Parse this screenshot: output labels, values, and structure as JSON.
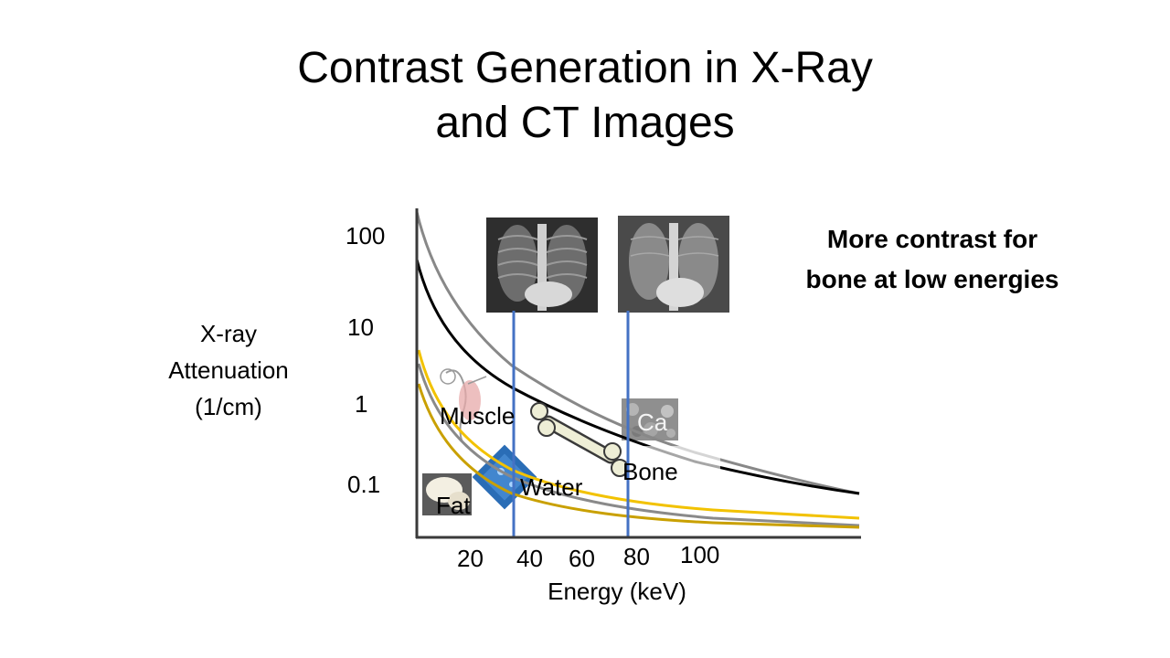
{
  "title": {
    "line1": "Contrast Generation in X-Ray",
    "line2": "and CT Images"
  },
  "callout": {
    "line1": "More contrast for",
    "line2": "bone at low energies"
  },
  "chart_data": {
    "type": "line",
    "ylabel_lines": [
      "X-ray",
      "Attenuation",
      "(1/cm)"
    ],
    "xlabel": "Energy (keV)",
    "yticks": [
      "100",
      "10",
      "1",
      "0.1"
    ],
    "xticks": [
      "20",
      "40",
      "60",
      "80",
      "100"
    ],
    "annotations": [
      "Muscle",
      "Bone",
      "Water",
      "Fat",
      "Ca"
    ],
    "markers_keV": [
      40,
      80
    ],
    "colors": {
      "gray": "#888888",
      "black": "#000000",
      "yellow": "#f2c200",
      "gold": "#c9a000",
      "marker": "#4472c4"
    }
  }
}
